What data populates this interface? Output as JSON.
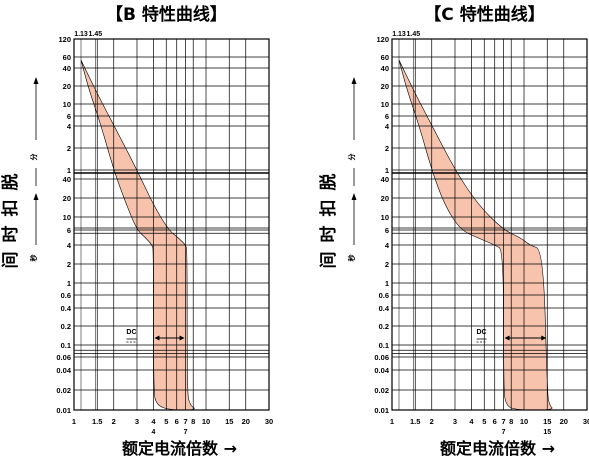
{
  "chart_data": [
    {
      "type": "area",
      "title": "【B 特性曲线】",
      "ylabel": "脱扣时间",
      "xlabel": "额定电流倍数",
      "x_axis": {
        "scale": "log",
        "range": [
          1,
          30
        ],
        "tick_labels": [
          "1",
          "1.5",
          "2",
          "3",
          "4",
          "5",
          "6",
          "7",
          "8",
          "10",
          "15",
          "20",
          "30"
        ],
        "top_tick_labels": [
          "1.13",
          "1.45"
        ],
        "bottom_markers": [
          "4",
          "7"
        ]
      },
      "y_axis": {
        "scale": "log",
        "minutes_section": {
          "unit": "分",
          "tick_labels": [
            "120",
            "60",
            "40",
            "20",
            "10",
            "6",
            "4",
            "2",
            "1"
          ]
        },
        "seconds_section": {
          "unit": "秒",
          "tick_labels": [
            "40",
            "20",
            "10",
            "6",
            "4",
            "2",
            "1",
            "0.6",
            "0.4",
            "0.2",
            "0.1",
            "0.06",
            "0.04",
            "0.02",
            "0.01"
          ]
        }
      },
      "grid": true,
      "band": {
        "upper_curve_x": [
          1.13,
          1.45,
          2,
          3,
          4,
          5.2,
          6.2,
          7,
          7.2,
          7.2,
          7.5,
          8.6
        ],
        "lower_curve_x": [
          1.13,
          1.3,
          1.6,
          2,
          2.5,
          3,
          3.5,
          3.9,
          4,
          4,
          4.2,
          5.3
        ]
      },
      "annotation": "DC",
      "dc_range": [
        4,
        7
      ]
    },
    {
      "type": "area",
      "title": "【C 特性曲线】",
      "ylabel": "脱扣时间",
      "xlabel": "额定电流倍数",
      "x_axis": {
        "scale": "log",
        "range": [
          1,
          30
        ],
        "tick_labels": [
          "1",
          "1.5",
          "2",
          "3",
          "4",
          "5",
          "6",
          "7",
          "8",
          "10",
          "15",
          "20",
          "30"
        ],
        "top_tick_labels": [
          "1.13",
          "1.45"
        ],
        "bottom_markers": [
          "7",
          "15"
        ]
      },
      "y_axis": {
        "scale": "log",
        "minutes_section": {
          "unit": "分",
          "tick_labels": [
            "120",
            "60",
            "40",
            "20",
            "10",
            "6",
            "4",
            "2",
            "1"
          ]
        },
        "seconds_section": {
          "unit": "秒",
          "tick_labels": [
            "40",
            "20",
            "10",
            "6",
            "4",
            "2",
            "1",
            "0.6",
            "0.4",
            "0.2",
            "0.1",
            "0.06",
            "0.04",
            "0.02",
            "0.01"
          ]
        }
      },
      "grid": true,
      "band": {
        "upper_curve_x": [
          1.13,
          1.45,
          2,
          3,
          4.5,
          7,
          9.5,
          11,
          14,
          15,
          15.5,
          17
        ],
        "lower_curve_x": [
          1.13,
          1.3,
          1.6,
          2,
          2.5,
          3.3,
          4.5,
          6,
          7,
          7,
          7.3,
          8.5
        ]
      },
      "annotation": "DC",
      "dc_range": [
        7,
        15
      ]
    }
  ],
  "colors": {
    "band_fill": "#f7c3ad",
    "band_stroke": "#000000",
    "grid": "#000000"
  },
  "arrow_glyph": "→"
}
